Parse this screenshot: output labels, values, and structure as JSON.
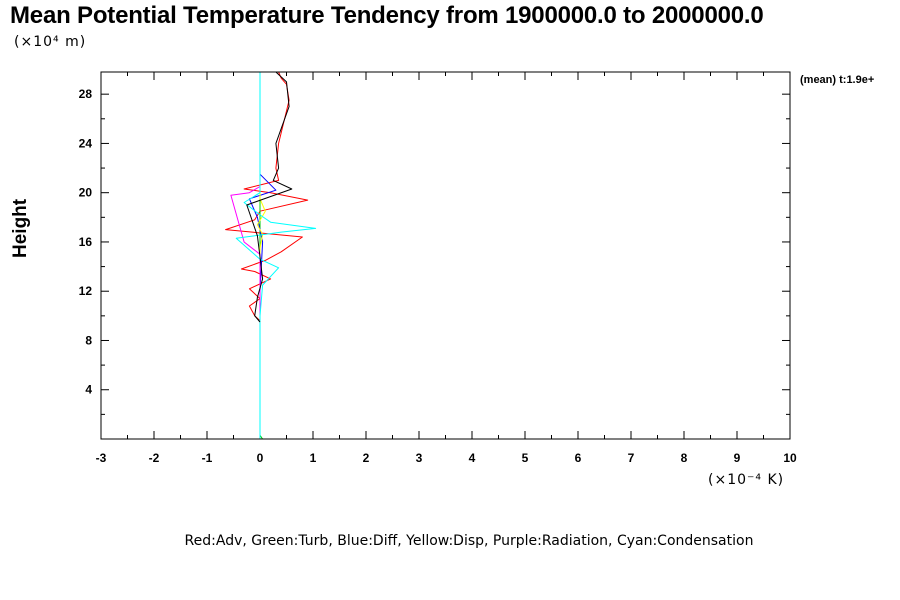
{
  "chart_data": {
    "type": "line",
    "title": "Mean Potential Temperature Tendency from 1900000.0 to 2000000.0",
    "y_unit_label": "(×10⁴ m)",
    "x_unit_label": "(×10⁻⁴ K)",
    "ylabel": "Height",
    "annotation": "(mean) t:1.9e+",
    "legend_text": "Red:Adv, Green:Turb, Blue:Diff, Yellow:Disp, Purple:Radiation, Cyan:Condensation",
    "xlim": [
      -3,
      10
    ],
    "ylim": [
      0,
      29.8
    ],
    "x_ticks": [
      -3,
      -2,
      -1,
      0,
      1,
      2,
      3,
      4,
      5,
      6,
      7,
      8,
      9,
      10
    ],
    "x_tick_labels": [
      "-3",
      "-2",
      "-1",
      "0",
      "1",
      "2",
      "3",
      "4",
      "5",
      "6",
      "7",
      "8",
      "9",
      "10"
    ],
    "y_ticks": [
      4,
      8,
      12,
      16,
      20,
      24,
      28
    ],
    "y_tick_labels": [
      "4",
      "8",
      "12",
      "16",
      "20",
      "24",
      "28"
    ],
    "grid": false,
    "series": [
      {
        "name": "Red:Adv",
        "color": "#ff0000",
        "values": [
          [
            0.0,
            0.0
          ],
          [
            0.0,
            9.6
          ],
          [
            -0.1,
            10.0
          ],
          [
            -0.2,
            10.8
          ],
          [
            0.0,
            11.4
          ],
          [
            -0.2,
            12.2
          ],
          [
            0.2,
            13.0
          ],
          [
            -0.1,
            13.6
          ],
          [
            -0.35,
            13.8
          ],
          [
            0.1,
            14.5
          ],
          [
            0.4,
            15.2
          ],
          [
            0.8,
            16.4
          ],
          [
            -0.65,
            17.0
          ],
          [
            -0.1,
            17.8
          ],
          [
            0.0,
            18.5
          ],
          [
            0.9,
            19.4
          ],
          [
            0.2,
            20.0
          ],
          [
            -0.3,
            20.3
          ],
          [
            0.35,
            21.0
          ],
          [
            0.3,
            22.0
          ],
          [
            0.35,
            24.0
          ],
          [
            0.55,
            27.5
          ],
          [
            0.5,
            28.8
          ],
          [
            0.4,
            29.3
          ],
          [
            0.35,
            29.8
          ]
        ]
      },
      {
        "name": "Green:Turb",
        "color": "#00cc00",
        "values": [
          [
            0.05,
            0.0
          ],
          [
            0.0,
            0.3
          ],
          [
            0.0,
            9.6
          ],
          [
            0.0,
            16.0
          ],
          [
            0.0,
            20.0
          ],
          [
            0.0,
            29.8
          ]
        ]
      },
      {
        "name": "Blue:Diff",
        "color": "#0000ff",
        "values": [
          [
            0.0,
            0.0
          ],
          [
            0.0,
            9.6
          ],
          [
            0.0,
            12.0
          ],
          [
            0.05,
            16.0
          ],
          [
            -0.05,
            18.0
          ],
          [
            -0.2,
            19.5
          ],
          [
            0.3,
            20.2
          ],
          [
            0.0,
            21.5
          ],
          [
            0.0,
            24.0
          ],
          [
            0.0,
            28.0
          ],
          [
            0.0,
            29.8
          ]
        ]
      },
      {
        "name": "Yellow:Disp",
        "color": "#ffff00",
        "values": [
          [
            0.0,
            0.0
          ],
          [
            0.0,
            15.5
          ],
          [
            0.05,
            16.6
          ],
          [
            -0.05,
            17.4
          ],
          [
            0.1,
            18.5
          ],
          [
            0.0,
            19.5
          ],
          [
            0.0,
            29.8
          ]
        ]
      },
      {
        "name": "Purple:Radiation",
        "color": "#ff00ff",
        "values": [
          [
            0.0,
            0.0
          ],
          [
            0.0,
            15.0
          ],
          [
            -0.3,
            16.0
          ],
          [
            -0.55,
            19.8
          ],
          [
            -0.2,
            20.0
          ],
          [
            0.0,
            20.5
          ],
          [
            0.0,
            29.8
          ]
        ]
      },
      {
        "name": "Cyan:Condensation",
        "color": "#00ffff",
        "values": [
          [
            0.0,
            0.0
          ],
          [
            0.0,
            10.0
          ],
          [
            0.05,
            12.5
          ],
          [
            0.35,
            13.9
          ],
          [
            0.0,
            14.6
          ],
          [
            -0.45,
            16.3
          ],
          [
            0.4,
            16.8
          ],
          [
            1.05,
            17.1
          ],
          [
            0.2,
            17.6
          ],
          [
            0.0,
            18.2
          ],
          [
            -0.3,
            19.2
          ],
          [
            0.0,
            20.0
          ],
          [
            0.0,
            29.8
          ]
        ]
      },
      {
        "name": "",
        "color": "#000000",
        "values": [
          [
            0.0,
            9.5
          ],
          [
            -0.1,
            10.0
          ],
          [
            -0.05,
            11.5
          ],
          [
            0.05,
            13.0
          ],
          [
            0.0,
            14.8
          ],
          [
            -0.05,
            16.5
          ],
          [
            -0.25,
            19.0
          ],
          [
            0.6,
            20.3
          ],
          [
            0.25,
            21.0
          ],
          [
            0.35,
            22.0
          ],
          [
            0.3,
            24.0
          ],
          [
            0.55,
            27.0
          ],
          [
            0.5,
            29.0
          ],
          [
            0.3,
            29.8
          ]
        ]
      }
    ]
  }
}
